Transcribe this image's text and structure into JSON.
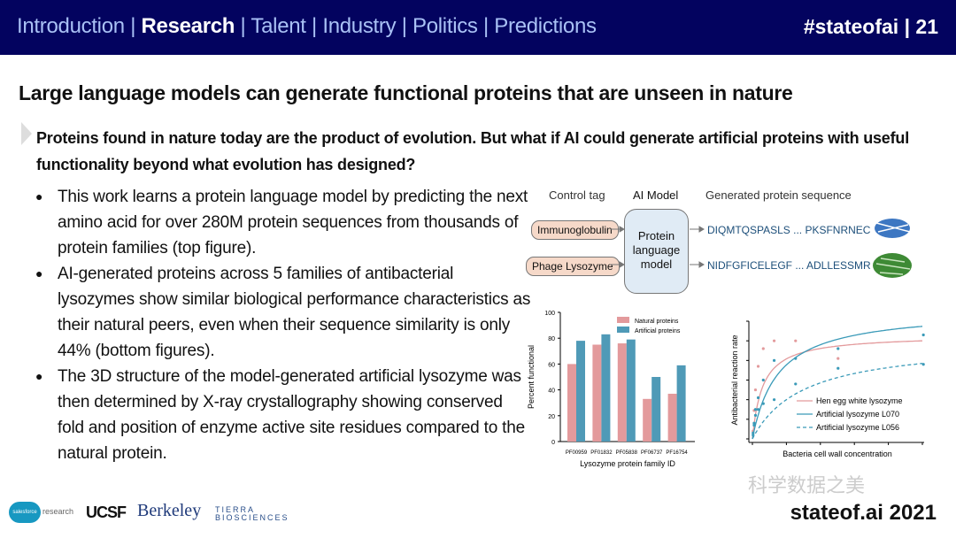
{
  "header": {
    "nav": [
      {
        "label": "Introduction",
        "active": false
      },
      {
        "label": "Research",
        "active": true
      },
      {
        "label": "Talent",
        "active": false
      },
      {
        "label": "Industry",
        "active": false
      },
      {
        "label": "Politics",
        "active": false
      },
      {
        "label": "Predictions",
        "active": false
      }
    ],
    "separator": " | ",
    "hashtag": "#stateofai | 21"
  },
  "title": "Large language models can generate functional proteins that are unseen in nature",
  "subtitle": "Proteins found in nature today are the product of evolution. But what if AI could generate artificial proteins with useful functionality beyond what evolution has designed?",
  "bullets": [
    "This work learns a protein language model by predicting the next amino acid for over 280M protein sequences from thousands of protein families (top figure).",
    "AI-generated proteins across 5 families of antibacterial lysozymes show similar biological performance characteristics as their natural peers, even when their sequence similarity is only 44% (bottom figures).",
    "The 3D structure of the model-generated artificial lysozyme was then determined by X-ray crystallography showing conserved fold and position of enzyme active site residues compared to the natural protein."
  ],
  "diagram": {
    "col_control": "Control tag",
    "col_model": "AI Model",
    "col_seq": "Generated protein sequence",
    "tags": [
      "Immunoglobulin",
      "Phage Lysozyme"
    ],
    "model": "Protein language model",
    "sequences": [
      "DIQMTQSPASLS ... PKSFNRNEC",
      "NIDFGFICELEGF ... ADLLESSMR"
    ]
  },
  "chart_data": [
    {
      "type": "bar",
      "categories": [
        "PF00959",
        "PF01832",
        "PF05838",
        "PF06737",
        "PF16754"
      ],
      "series": [
        {
          "name": "Natural proteins",
          "color": "#e39a9c",
          "values": [
            60,
            75,
            76,
            33,
            37
          ]
        },
        {
          "name": "Artificial proteins",
          "color": "#4f9ab7",
          "values": [
            78,
            83,
            79,
            50,
            59
          ]
        }
      ],
      "xlabel": "Lysozyme protein family ID",
      "ylabel": "Percent functional",
      "ylim": [
        0,
        100
      ],
      "yticks": [
        0,
        20,
        40,
        60,
        80,
        100
      ],
      "legend": "top-right"
    },
    {
      "type": "line",
      "xlabel": "Bacteria cell wall concentration",
      "ylabel": "Antibacterial reaction rate",
      "xlim": [
        0,
        5
      ],
      "ylim": [
        0,
        6
      ],
      "legend": "bottom-right",
      "series": [
        {
          "name": "Hen egg white lysozyme",
          "color": "#e39a9c",
          "dash": false,
          "fit_vmax": 5.3,
          "fit_k": 0.3,
          "x": [
            0.02,
            0.05,
            0.09,
            0.17,
            0.32,
            0.64,
            1.27,
            2.52
          ],
          "y": [
            0.4,
            1.45,
            2.5,
            3.7,
            4.6,
            5.0,
            5.0,
            4.1
          ]
        },
        {
          "name": "Artificial lysozyme L070",
          "color": "#3a9ab8",
          "dash": false,
          "fit_vmax": 6.6,
          "fit_k": 0.75,
          "x": [
            0.02,
            0.05,
            0.09,
            0.17,
            0.32,
            0.64,
            1.27,
            2.52,
            5.03
          ],
          "y": [
            0.3,
            0.8,
            1.5,
            2.1,
            3.0,
            4.0,
            4.1,
            4.6,
            5.3
          ]
        },
        {
          "name": "Artificial lysozyme L056",
          "color": "#3a9ab8",
          "dash": true,
          "fit_vmax": 5.0,
          "fit_k": 1.5,
          "x": [
            0.02,
            0.05,
            0.09,
            0.17,
            0.32,
            0.64,
            1.27,
            2.52,
            5.03
          ],
          "y": [
            0.2,
            0.7,
            1.2,
            1.5,
            1.8,
            2.0,
            2.8,
            3.6,
            3.8
          ]
        }
      ]
    }
  ],
  "footer": {
    "logos": [
      "salesforce research",
      "UCSF",
      "Berkeley",
      "TIERRA BIOSCIENCES"
    ],
    "watermark": "科学数据之美",
    "brand": "stateof.ai 2021"
  }
}
